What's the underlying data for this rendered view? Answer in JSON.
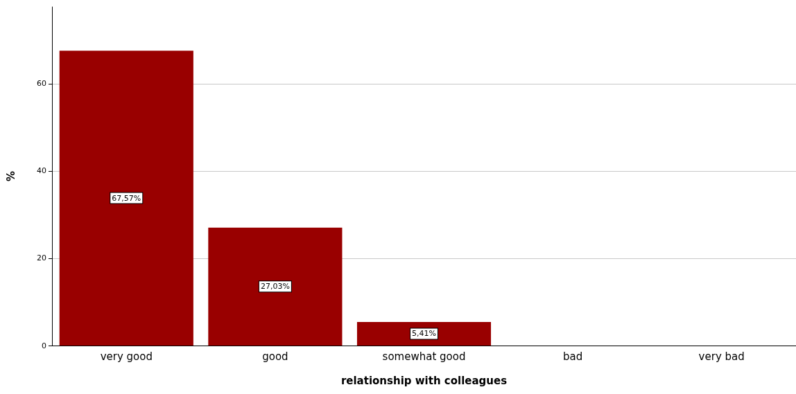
{
  "chart_data": {
    "type": "bar",
    "xlabel": "relationship with colleagues",
    "ylabel": "%",
    "categories": [
      "very good",
      "good",
      "somewhat good",
      "bad",
      "very bad"
    ],
    "values": [
      67.57,
      27.03,
      5.41,
      0,
      0
    ],
    "value_labels": [
      "67,57%",
      "27,03%",
      "5,41%",
      null,
      null
    ],
    "color": "#990000",
    "ylim": [
      0,
      77.6
    ],
    "yticks": [
      0,
      20,
      40,
      60
    ],
    "grid": "y"
  }
}
